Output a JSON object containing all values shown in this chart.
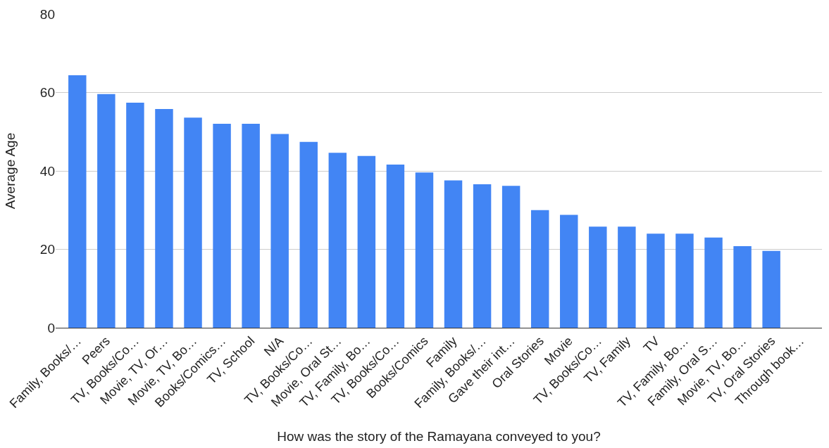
{
  "chart_data": {
    "type": "bar",
    "xlabel": "How was the story of the Ramayana conveyed to you?",
    "ylabel": "Average Age",
    "categories": [
      "Family, Books/…",
      "Peers",
      "TV, Books/Co…",
      "Movie, TV, Or…",
      "Movie, TV, Bo…",
      "Books/Comics…",
      "TV, School",
      "N/A",
      "TV, Books/Co…",
      "Movie, Oral St…",
      "TV, Family, Bo…",
      "TV, Books/Co…",
      "Books/Comics",
      "Family",
      "Family, Books/…",
      "Gave their int…",
      "Oral Stories",
      "Movie",
      "TV, Books/Co…",
      "TV, Family",
      "TV",
      "TV, Family, Bo…",
      "Family, Oral S…",
      "Movie, TV, Bo…",
      "TV, Oral Stories",
      "Through book…"
    ],
    "values": [
      64.4,
      59.6,
      57.4,
      55.8,
      53.6,
      52,
      52,
      49.4,
      47.4,
      44.6,
      43.8,
      41.6,
      39.6,
      37.6,
      36.6,
      36.2,
      30,
      28.8,
      25.8,
      25.8,
      24,
      24,
      23,
      20.8,
      19.6,
      null
    ],
    "color": "#4285f4",
    "ylim": [
      0,
      80
    ],
    "yticks": [
      0,
      20,
      40,
      60,
      80
    ],
    "grid": "y"
  }
}
